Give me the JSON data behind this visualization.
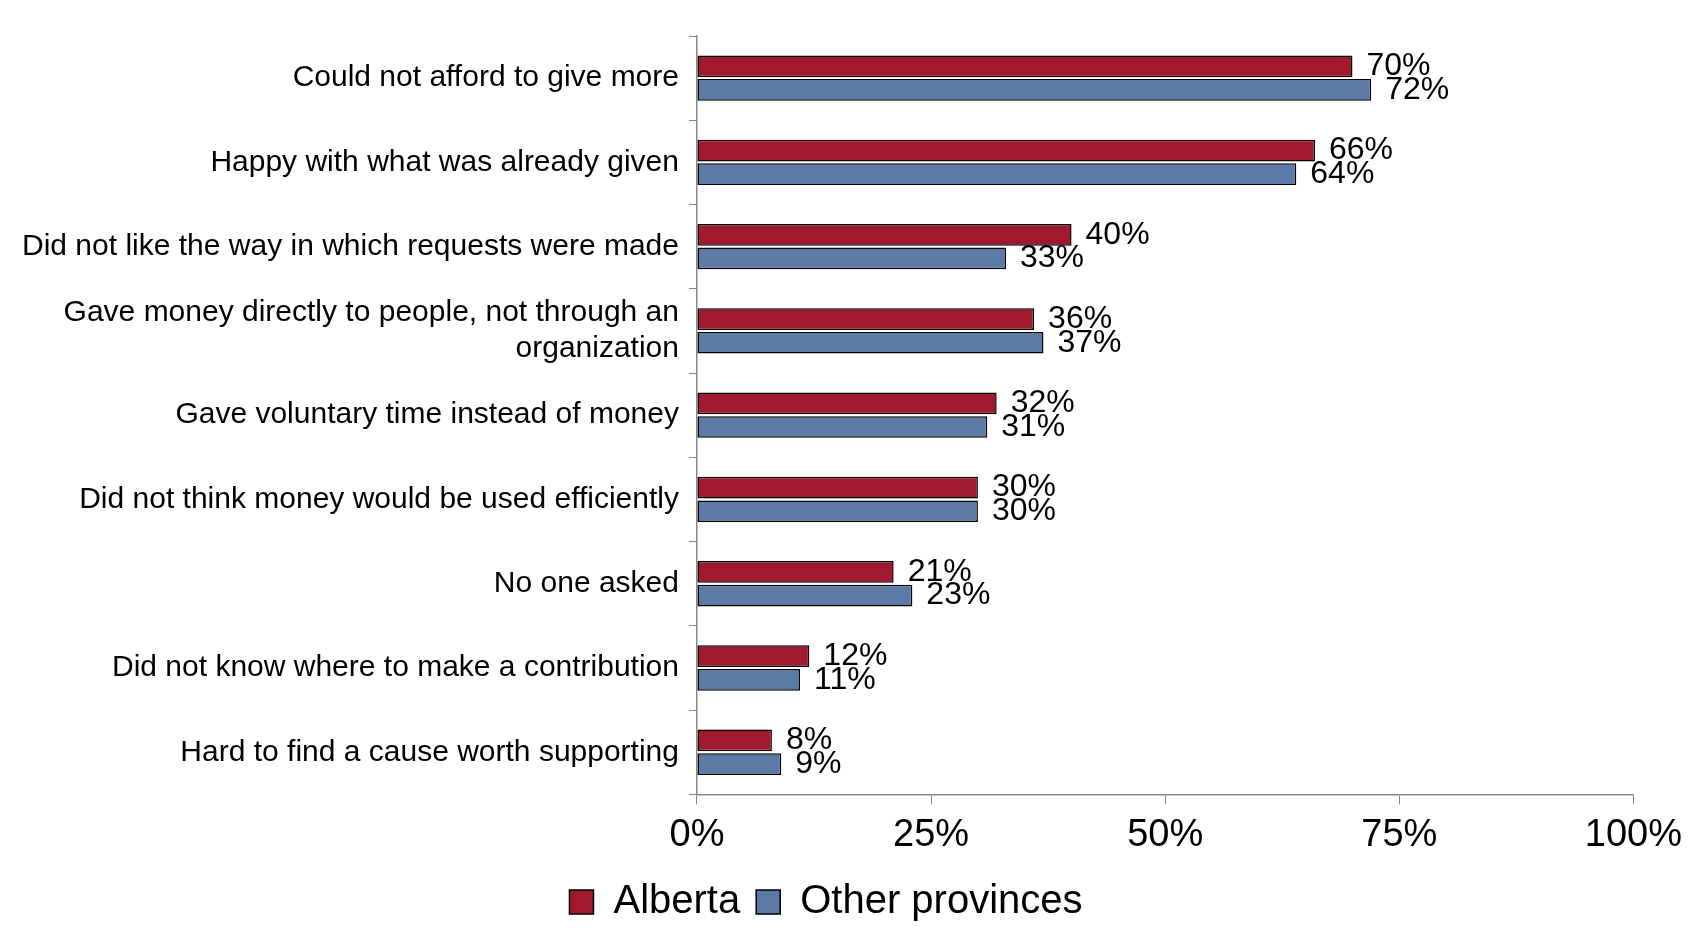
{
  "chart_data": {
    "type": "bar",
    "orientation": "horizontal",
    "categories": [
      "Could not afford to give more",
      "Happy with what was already given",
      "Did not like the way in which requests were made",
      "Gave money directly to people, not through an organization",
      "Gave voluntary time instead of money",
      "Did not think money would be used efficiently",
      "No one asked",
      "Did not know where to make a contribution",
      "Hard to find a cause worth supporting"
    ],
    "series": [
      {
        "name": "Alberta",
        "color": "#a0192f",
        "values": [
          70,
          66,
          40,
          36,
          32,
          30,
          21,
          12,
          8
        ],
        "value_labels": [
          "70%",
          "66%",
          "40%",
          "36%",
          "32%",
          "30%",
          "21%",
          "12%",
          "8%"
        ]
      },
      {
        "name": "Other provinces",
        "color": "#5b7ba6",
        "values": [
          72,
          64,
          33,
          37,
          31,
          30,
          23,
          11,
          9
        ],
        "value_labels": [
          "72%",
          "64%",
          "33%",
          "37%",
          "31%",
          "30%",
          "23%",
          "11%",
          "9%"
        ]
      }
    ],
    "xlim": [
      0,
      100
    ],
    "xticks": [
      {
        "value": 0,
        "label": "0%"
      },
      {
        "value": 25,
        "label": "25%"
      },
      {
        "value": 50,
        "label": "50%"
      },
      {
        "value": 75,
        "label": "75%"
      },
      {
        "value": 100,
        "label": "100%"
      }
    ],
    "grid": false,
    "legend": "bottom"
  }
}
